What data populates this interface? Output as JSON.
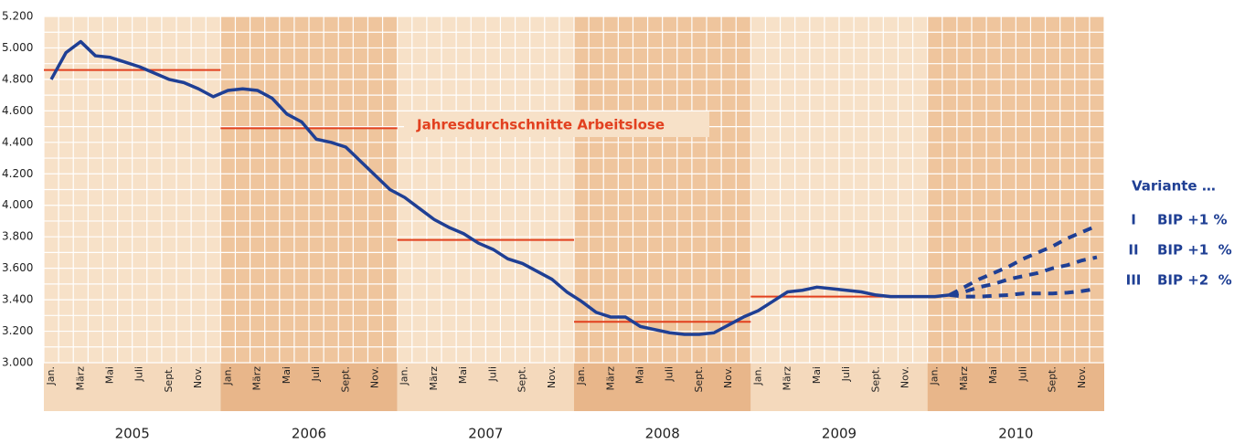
{
  "chart_data": {
    "type": "line",
    "categories": [
      "Jan.",
      null,
      "März",
      null,
      "Mai",
      null,
      "Juli",
      null,
      "Sept.",
      null,
      "Nov.",
      null,
      "Jan.",
      null,
      "März",
      null,
      "Mai",
      null,
      "Juli",
      null,
      "Sept.",
      null,
      "Nov.",
      null,
      "Jan.",
      null,
      "März",
      null,
      "Mai",
      null,
      "Juli",
      null,
      "Sept.",
      null,
      "Nov.",
      null,
      "Jan.",
      null,
      "März",
      null,
      "Mai",
      null,
      "Juli",
      null,
      "Sept.",
      null,
      "Nov.",
      null,
      "Jan.",
      null,
      "März",
      null,
      "Mai",
      null,
      "Juli",
      null,
      "Sept.",
      null,
      "Nov.",
      null,
      "Jan.",
      null,
      "März",
      null,
      "Mai",
      null,
      "Juli",
      null,
      "Sept.",
      null,
      "Nov.",
      null
    ],
    "years": [
      "2005",
      "2006",
      "2007",
      "2008",
      "2009",
      "2010"
    ],
    "values": [
      4800,
      4970,
      5040,
      4950,
      4940,
      4910,
      4880,
      4840,
      4800,
      4780,
      4740,
      4690,
      4730,
      4740,
      4730,
      4680,
      4580,
      4530,
      4420,
      4400,
      4370,
      4280,
      4190,
      4100,
      4050,
      3980,
      3910,
      3860,
      3820,
      3760,
      3720,
      3660,
      3630,
      3580,
      3530,
      3450,
      3390,
      3320,
      3290,
      3290,
      3230,
      3210,
      3190,
      3180,
      3180,
      3190,
      3240,
      3290,
      3330,
      3390,
      3450,
      3460,
      3480,
      3470,
      3460,
      3450,
      3430,
      3420,
      3420,
      3420,
      3420,
      3430,
      null,
      null,
      null,
      null,
      null,
      null,
      null,
      null,
      null,
      null
    ],
    "color": "#1f3f94",
    "averages": {
      "label": "Jahresdurchschnitte Arbeitslose",
      "values": [
        4860,
        4490,
        3780,
        3260,
        3420
      ],
      "color": "#e2401f"
    },
    "legend_title": "Variante …",
    "series": [
      {
        "name": "I",
        "label": "BIP +1 %",
        "color": "#1f3f94",
        "dashed": true,
        "values": [
          null,
          null,
          null,
          null,
          null,
          null,
          null,
          null,
          null,
          null,
          null,
          null,
          null,
          null,
          null,
          null,
          null,
          null,
          null,
          null,
          null,
          null,
          null,
          null,
          null,
          null,
          null,
          null,
          null,
          null,
          null,
          null,
          null,
          null,
          null,
          null,
          null,
          null,
          null,
          null,
          null,
          null,
          null,
          null,
          null,
          null,
          null,
          null,
          null,
          null,
          null,
          null,
          null,
          null,
          null,
          null,
          null,
          null,
          null,
          null,
          null,
          3430,
          3480,
          3530,
          3570,
          3610,
          3660,
          3700,
          3740,
          3790,
          3830,
          3870
        ]
      },
      {
        "name": "II",
        "label": "BIP +1  %",
        "color": "#1f3f94",
        "dashed": true,
        "values": [
          null,
          null,
          null,
          null,
          null,
          null,
          null,
          null,
          null,
          null,
          null,
          null,
          null,
          null,
          null,
          null,
          null,
          null,
          null,
          null,
          null,
          null,
          null,
          null,
          null,
          null,
          null,
          null,
          null,
          null,
          null,
          null,
          null,
          null,
          null,
          null,
          null,
          null,
          null,
          null,
          null,
          null,
          null,
          null,
          null,
          null,
          null,
          null,
          null,
          null,
          null,
          null,
          null,
          null,
          null,
          null,
          null,
          null,
          null,
          null,
          null,
          3430,
          3450,
          3480,
          3500,
          3530,
          3550,
          3570,
          3600,
          3620,
          3650,
          3670
        ]
      },
      {
        "name": "III",
        "label": "BIP +2  %",
        "color": "#1f3f94",
        "dashed": true,
        "values": [
          null,
          null,
          null,
          null,
          null,
          null,
          null,
          null,
          null,
          null,
          null,
          null,
          null,
          null,
          null,
          null,
          null,
          null,
          null,
          null,
          null,
          null,
          null,
          null,
          null,
          null,
          null,
          null,
          null,
          null,
          null,
          null,
          null,
          null,
          null,
          null,
          null,
          null,
          null,
          null,
          null,
          null,
          null,
          null,
          null,
          null,
          null,
          null,
          null,
          null,
          null,
          null,
          null,
          null,
          null,
          null,
          null,
          null,
          null,
          null,
          null,
          3430,
          3420,
          3420,
          3425,
          3430,
          3440,
          3440,
          3440,
          3445,
          3455,
          3470
        ]
      }
    ],
    "ylim": [
      3000,
      5200
    ],
    "yticks": [
      {
        "value": 3000,
        "label": "3.000"
      },
      {
        "value": 3200,
        "label": "3.200"
      },
      {
        "value": 3400,
        "label": "3.400"
      },
      {
        "value": 3600,
        "label": "3.600"
      },
      {
        "value": 3800,
        "label": "3.800"
      },
      {
        "value": 4000,
        "label": "4.000"
      },
      {
        "value": 4200,
        "label": "4.200"
      },
      {
        "value": 4400,
        "label": "4.400"
      },
      {
        "value": 4600,
        "label": "4.600"
      },
      {
        "value": 4800,
        "label": "4.800"
      },
      {
        "value": 5000,
        "label": "5.000"
      },
      {
        "value": 5200,
        "label": "5.200"
      }
    ],
    "grid": true
  }
}
